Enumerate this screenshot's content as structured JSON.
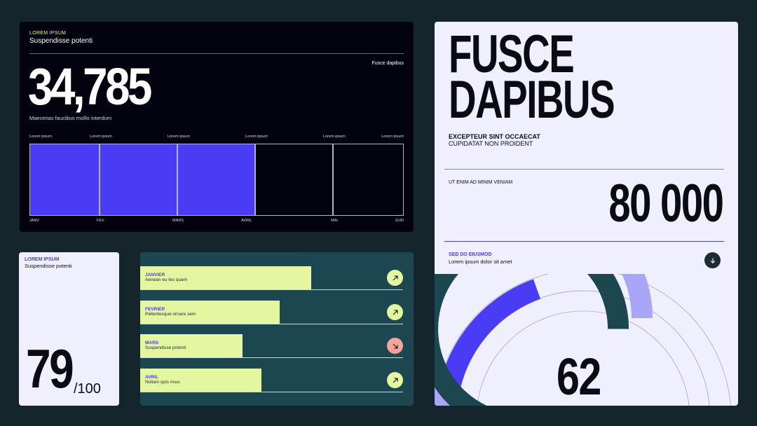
{
  "revenue_card": {
    "eyebrow": "LOREM IPSUM",
    "subtitle": "Suspendisse potenti",
    "tag": "Fusce dapibus",
    "big_number": "34,785",
    "caption": "Maecenas faucibus mollis interdum",
    "column_labels": [
      "Lorem ipsum",
      "Lorem ipsum",
      "Lorem ipsum",
      "Lorem ipsum",
      "Lorem ipsum",
      "Lorem ipsum"
    ],
    "months": [
      "JANV",
      "FEV",
      "MARS",
      "AVRIL",
      "MAI",
      "JUIN"
    ],
    "filled_months": [
      "JANV",
      "FEV",
      "MARS"
    ],
    "colors": {
      "fill": "#4a3cf5",
      "background": "#03030f",
      "grid": "#b5b5c0"
    }
  },
  "score_card": {
    "eyebrow": "LOREM IPSUM",
    "subtitle": "Suspendisse potenti",
    "score": "79",
    "out_of": "/100"
  },
  "months_card": {
    "rows": [
      {
        "name": "JANVIER",
        "desc": "Aenean eu leo quam",
        "level": 0.65,
        "trend": "up",
        "icon": "arrow-up-right-icon"
      },
      {
        "name": "FEVRIER",
        "desc": "Pellentesque ornare sem",
        "level": 0.53,
        "trend": "up",
        "icon": "arrow-up-right-icon"
      },
      {
        "name": "MARS",
        "desc": "Suspendisse potenti",
        "level": 0.39,
        "trend": "down",
        "icon": "arrow-down-right-icon"
      },
      {
        "name": "AVRIL",
        "desc": "Nullam quis risus",
        "level": 0.46,
        "trend": "up",
        "icon": "arrow-up-right-icon"
      }
    ],
    "colors": {
      "bar": "#e4f6a0",
      "up": "#e4f6a0",
      "down": "#f7a39c",
      "background": "#1d4750"
    }
  },
  "right_card": {
    "headline_line1": "FUSCE",
    "headline_line2": "DAPIBUS",
    "sub_bold": "EXCEPTEUR SINT OCCAECAT",
    "sub_regular": "CUPIDATAT NON PROIDENT",
    "kpi_label": "UT ENIM AD MINIM VENIAM",
    "kpi_value": "80 000",
    "section_title": "SED DO EIUSMOD",
    "section_sub": "Lorem ipsum dolor sit amet",
    "gauge_value": "62",
    "gauge_levels": [
      0.39,
      0.67,
      0.62
    ],
    "colors": {
      "outer": "#4a3cf5",
      "middle": "#a9a6f7",
      "inner": "#1d4750",
      "accent": "#4a3cf5"
    }
  }
}
